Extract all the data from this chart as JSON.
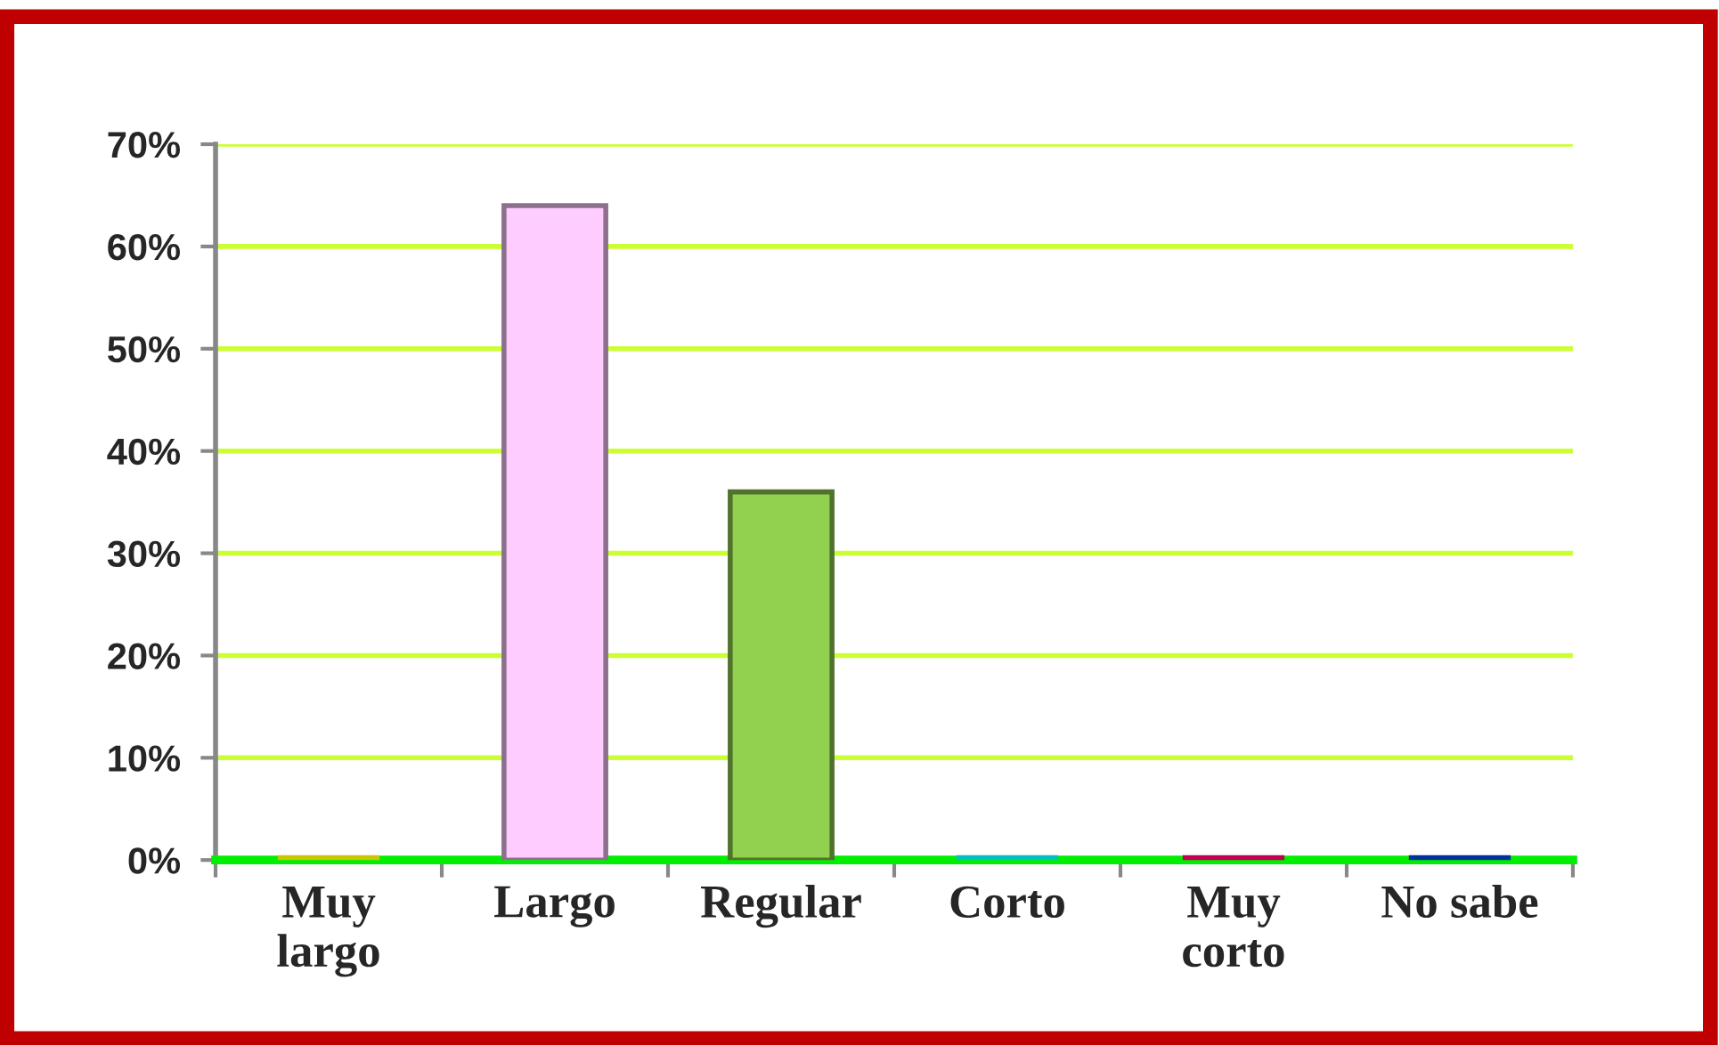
{
  "chart_data": {
    "type": "bar",
    "categories": [
      "Muy\nlargo",
      "Largo",
      "Regular",
      "Corto",
      "Muy\ncorto",
      "No sabe"
    ],
    "values": [
      0,
      64,
      36,
      0,
      0,
      0
    ],
    "colors": [
      "#c8c800",
      "#ffccff",
      "#92d050",
      "#00c0c0",
      "#c0004e",
      "#003399"
    ],
    "ylim": [
      0,
      70
    ],
    "yticks": [
      {
        "value": 0,
        "label": "0%"
      },
      {
        "value": 10,
        "label": "10%"
      },
      {
        "value": 20,
        "label": "20%"
      },
      {
        "value": 30,
        "label": "30%"
      },
      {
        "value": 40,
        "label": "40%"
      },
      {
        "value": 50,
        "label": "50%"
      },
      {
        "value": 60,
        "label": "60%"
      },
      {
        "value": 70,
        "label": "70%"
      }
    ],
    "grid": "y"
  }
}
